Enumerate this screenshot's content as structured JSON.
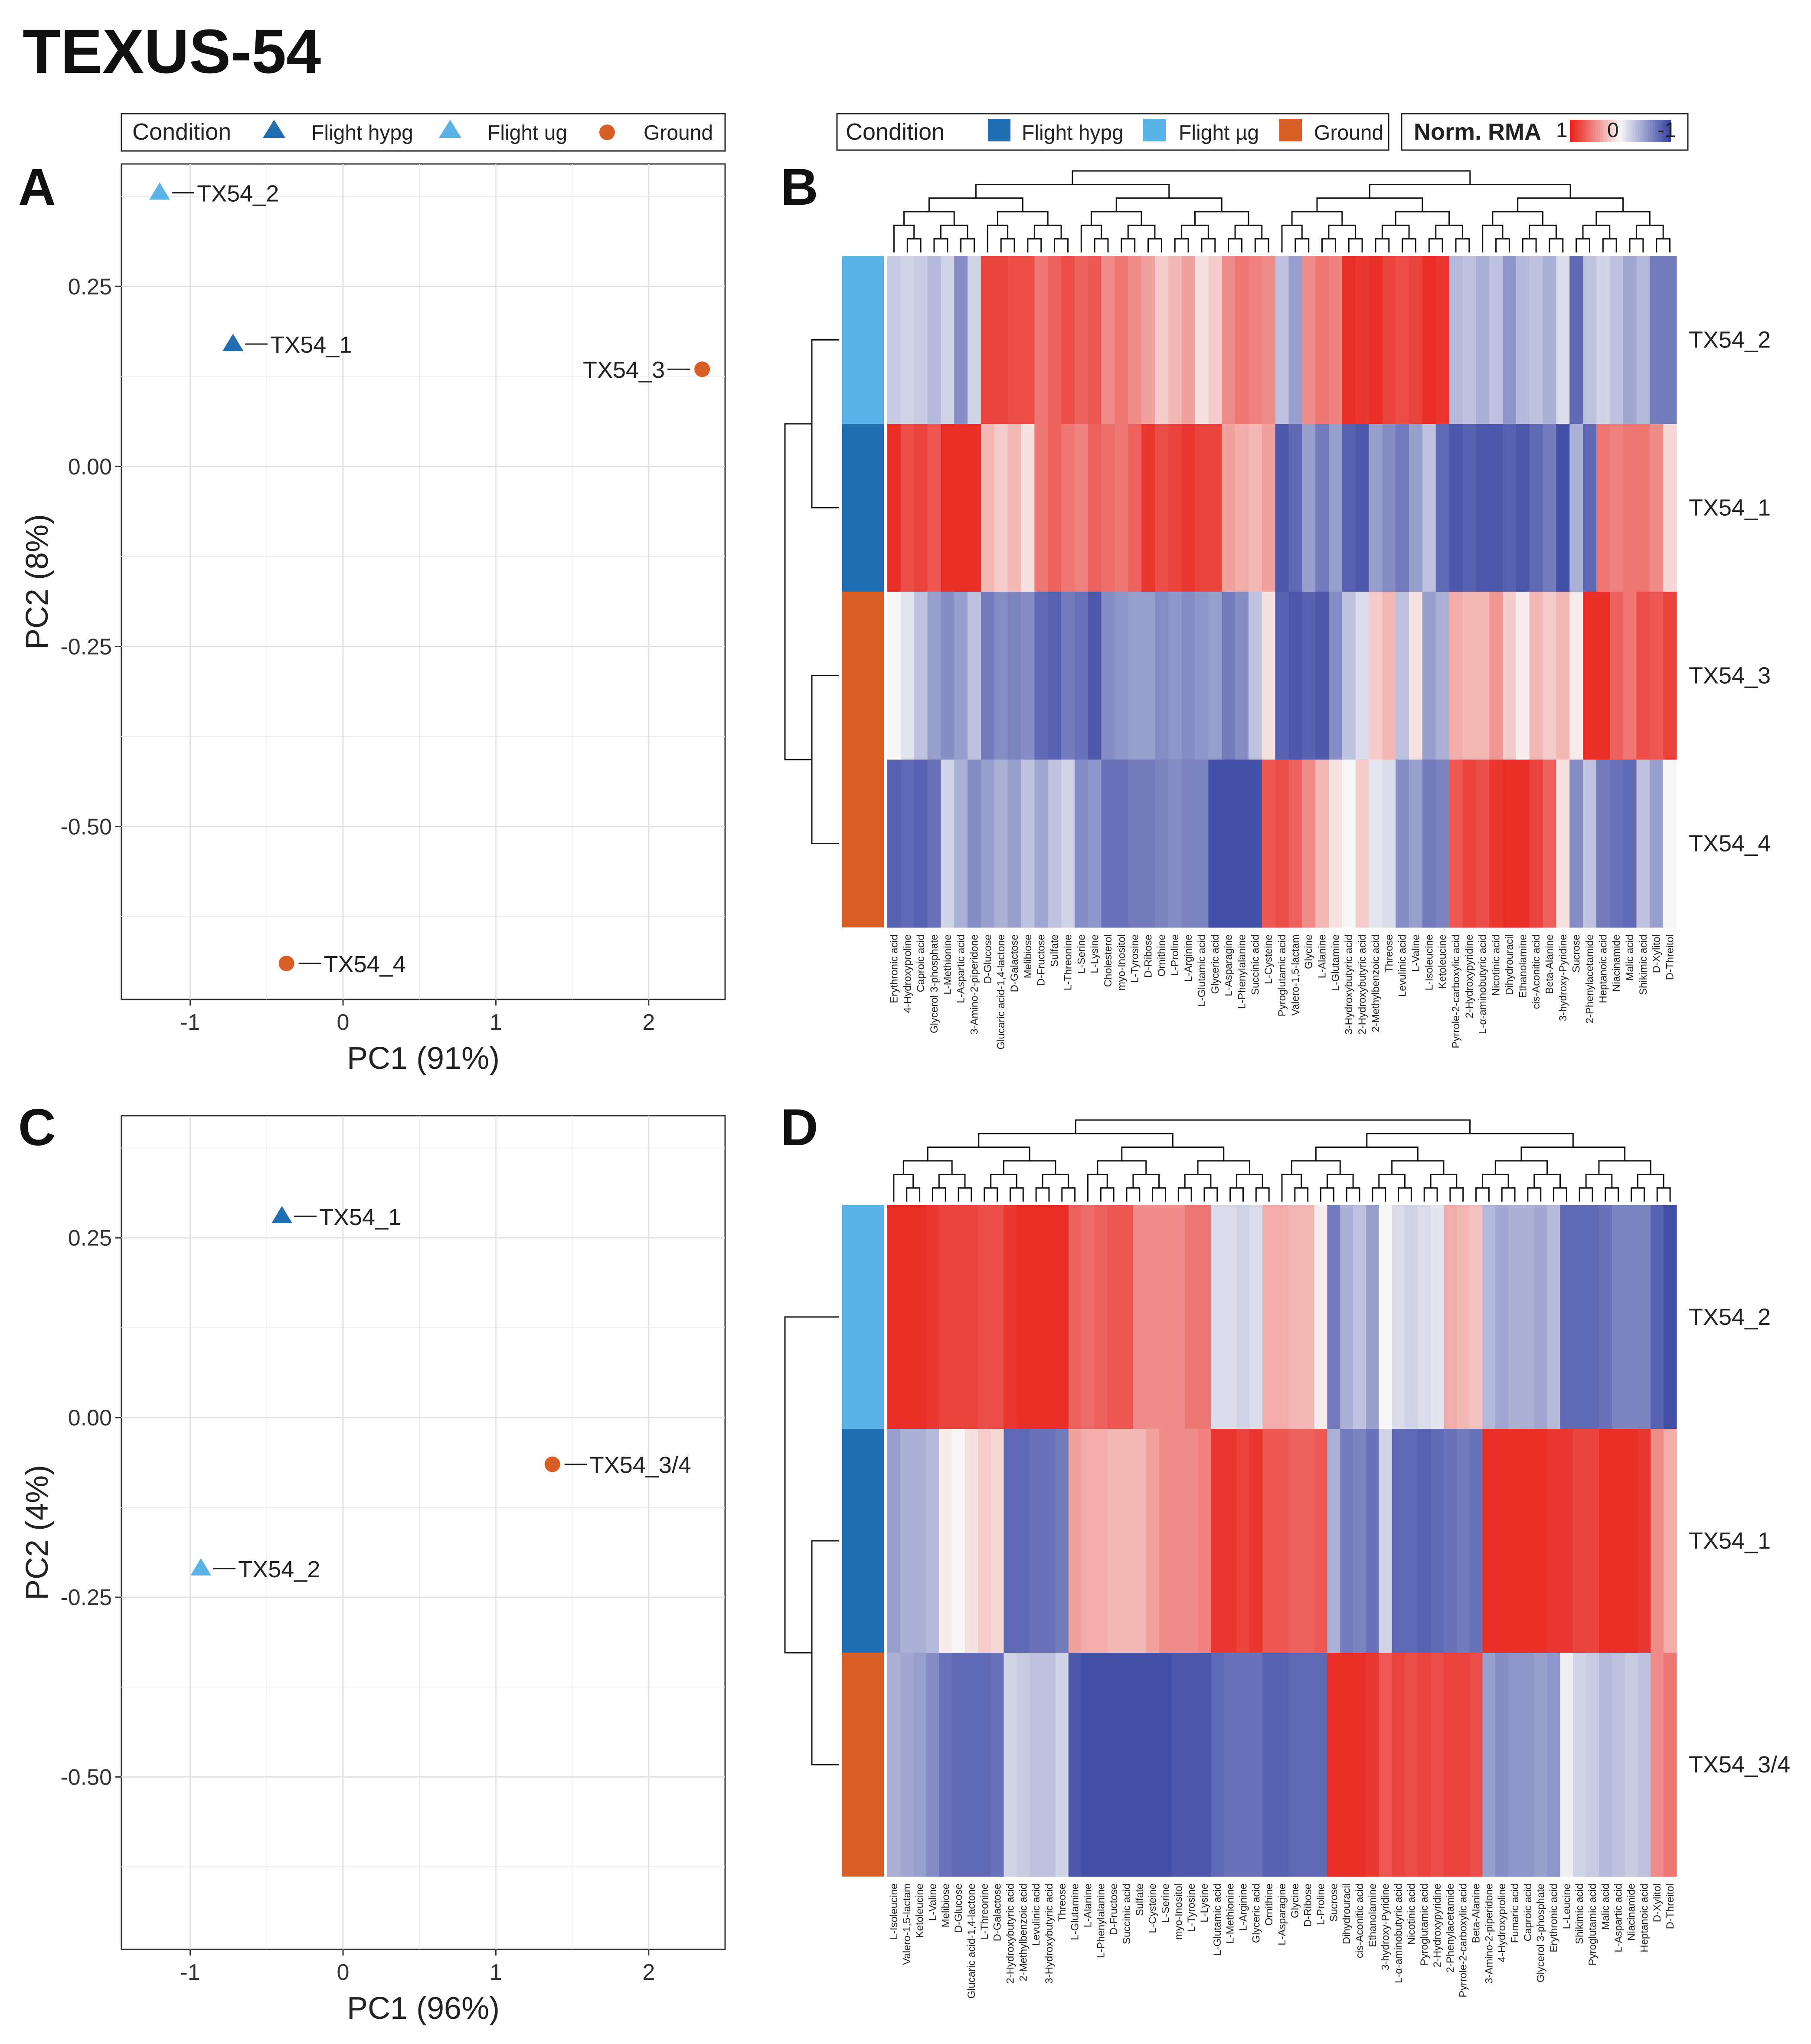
{
  "title": "TEXUS-54",
  "colors": {
    "flight_hypg": "#1f6fb2",
    "flight_ug": "#5ab3e6",
    "ground": "#d95f26",
    "heat_high": "#e8221c",
    "heat_mid": "#f7f7f7",
    "heat_low": "#3a46a3"
  },
  "panelA": {
    "label": "A",
    "legend": {
      "title": "Condition",
      "items": [
        "Flight hypg",
        "Flight ug",
        "Ground"
      ]
    }
  },
  "panelB": {
    "label": "B",
    "legend": {
      "title": "Condition",
      "items": [
        "Flight hypg",
        "Flight µg",
        "Ground"
      ]
    },
    "scale": {
      "title": "Norm. RMA",
      "ticks": [
        "1",
        "0",
        "-1"
      ]
    }
  },
  "panelC": {
    "label": "C"
  },
  "panelD": {
    "label": "D"
  },
  "chart_data": [
    {
      "id": "A",
      "type": "scatter",
      "xlabel": "PC1 (91%)",
      "ylabel": "PC2 (8%)",
      "xlim": [
        -1.45,
        2.5
      ],
      "ylim": [
        -0.74,
        0.42
      ],
      "xticks": [
        "-1",
        "0",
        "1",
        "2"
      ],
      "xtick_values": [
        -1,
        0,
        1,
        2
      ],
      "yticks": [
        "0.25",
        "0.00",
        "-0.25",
        "-0.50"
      ],
      "ytick_values": [
        0.25,
        0.0,
        -0.25,
        -0.5
      ],
      "points": [
        {
          "label": "TX54_2",
          "x": -1.2,
          "y": 0.38,
          "group": "Flight ug",
          "side": "right"
        },
        {
          "label": "TX54_1",
          "x": -0.72,
          "y": 0.17,
          "group": "Flight hypg",
          "side": "right"
        },
        {
          "label": "TX54_3",
          "x": 2.35,
          "y": 0.135,
          "group": "Ground",
          "side": "left"
        },
        {
          "label": "TX54_4",
          "x": -0.37,
          "y": -0.69,
          "group": "Ground",
          "side": "right"
        }
      ]
    },
    {
      "id": "B",
      "type": "heatmap",
      "rows": [
        "TX54_2",
        "TX54_1",
        "TX54_3",
        "TX54_4"
      ],
      "row_groups": [
        "Flight ug",
        "Flight hypg",
        "Ground",
        "Ground"
      ],
      "columns": [
        "Erythronic acid",
        "4-Hydroxyproline",
        "Caproic acid",
        "Glycerol 3-phosphate",
        "L-Methionine",
        "L-Aspartic acid",
        "3-Amino-2-piperidone",
        "D-Glucose",
        "Glucaric acid-1,4-lactone",
        "D-Galactose",
        "Melibiose",
        "D-Fructose",
        "Sulfate",
        "L-Threonine",
        "L-Serine",
        "L-Lysine",
        "Cholesterol",
        "myo-Inositol",
        "L-Tyrosine",
        "D-Ribose",
        "Ornithine",
        "L-Proline",
        "L-Arginine",
        "L-Glutamic acid",
        "Glyceric acid",
        "L-Asparagine",
        "L-Phenylalanine",
        "Succinic acid",
        "L-Cysteine",
        "Pyroglutamic acid",
        "Valero-1,5-lactam",
        "Glycine",
        "L-Alanine",
        "L-Glutamine",
        "3-Hydroxybutyric acid",
        "2-Hydroxybutyric acid",
        "2-Methylbenzoic acid",
        "Threose",
        "Levulinic acid",
        "L-Valine",
        "L-Isoleucine",
        "Ketoleucine",
        "Pyrrole-2-carboxylic acid",
        "2-Hydroxypyridine",
        "L-α-aminobutyric acid",
        "Nicotinic acid",
        "Dihydrouracil",
        "Ethanolamine",
        "cis-Aconitic acid",
        "Beta-Alanine",
        "3-hydroxy-Pyridine",
        "Sucrose",
        "2-Phenylacetamide",
        "Heptanoic acid",
        "Niacinamide",
        "Malic acid",
        "Shikimic acid",
        "D-Xylitol",
        "D-Threitol"
      ],
      "values": [
        [
          -0.25,
          -0.2,
          -0.25,
          -0.35,
          -0.2,
          -0.6,
          -0.2,
          0.85,
          0.85,
          0.8,
          0.8,
          0.6,
          0.7,
          0.8,
          0.7,
          0.75,
          0.5,
          0.6,
          0.5,
          0.4,
          0.2,
          0.3,
          0.4,
          0.1,
          0.2,
          0.5,
          0.6,
          0.55,
          0.5,
          -0.3,
          -0.5,
          0.5,
          0.6,
          0.55,
          0.95,
          0.9,
          0.95,
          0.85,
          0.8,
          0.85,
          0.95,
          0.9,
          -0.35,
          -0.3,
          -0.4,
          -0.3,
          -0.55,
          -0.35,
          -0.3,
          -0.4,
          -0.15,
          -0.8,
          -0.3,
          -0.2,
          -0.3,
          -0.45,
          -0.35,
          -0.7,
          -0.7
        ],
        [
          0.95,
          0.8,
          0.85,
          0.75,
          0.95,
          0.95,
          0.95,
          0.3,
          0.2,
          0.3,
          0.1,
          0.6,
          0.7,
          0.6,
          0.55,
          0.7,
          0.65,
          0.6,
          0.7,
          0.9,
          0.8,
          0.85,
          0.9,
          0.85,
          0.85,
          0.4,
          0.35,
          0.3,
          0.4,
          -0.9,
          -0.8,
          -0.5,
          -0.7,
          -0.5,
          -0.85,
          -0.9,
          -0.5,
          -0.6,
          -0.7,
          -0.5,
          -0.3,
          -0.8,
          -0.9,
          -0.85,
          -0.9,
          -0.9,
          -0.85,
          -0.9,
          -0.8,
          -0.7,
          -0.95,
          -0.4,
          -0.8,
          0.6,
          0.55,
          0.6,
          0.6,
          0.5,
          0.15
        ],
        [
          0.0,
          -0.1,
          -0.3,
          -0.5,
          -0.6,
          -0.5,
          -0.3,
          -0.7,
          -0.6,
          -0.65,
          -0.6,
          -0.8,
          -0.85,
          -0.7,
          -0.75,
          -0.9,
          -0.6,
          -0.55,
          -0.5,
          -0.5,
          -0.6,
          -0.55,
          -0.6,
          -0.55,
          -0.5,
          -0.7,
          -0.6,
          -0.3,
          0.1,
          -0.85,
          -0.9,
          -0.85,
          -0.9,
          -0.6,
          -0.3,
          -0.15,
          0.2,
          0.3,
          -0.3,
          0.1,
          -0.5,
          -0.4,
          0.35,
          0.3,
          0.3,
          0.45,
          0.2,
          0.05,
          0.3,
          0.2,
          0.3,
          0.05,
          0.95,
          0.95,
          0.7,
          0.6,
          0.8,
          0.75,
          0.85
        ],
        [
          -0.85,
          -0.8,
          -0.85,
          -0.75,
          -0.2,
          -0.4,
          -0.6,
          -0.5,
          -0.4,
          -0.5,
          -0.3,
          -0.45,
          -0.3,
          -0.2,
          -0.6,
          -0.55,
          -0.75,
          -0.75,
          -0.7,
          -0.7,
          -0.65,
          -0.6,
          -0.65,
          -0.65,
          -0.95,
          -0.95,
          -0.95,
          -0.95,
          0.75,
          0.8,
          0.7,
          0.5,
          0.3,
          0.1,
          0.0,
          0.2,
          -0.1,
          -0.15,
          -0.6,
          -0.5,
          -0.7,
          -0.65,
          0.75,
          0.85,
          0.8,
          0.9,
          0.95,
          0.95,
          0.85,
          0.7,
          0.1,
          -0.6,
          -0.3,
          -0.7,
          -0.75,
          -0.8,
          -0.3,
          -0.5,
          0.0
        ]
      ]
    },
    {
      "id": "C",
      "type": "scatter",
      "xlabel": "PC1 (96%)",
      "ylabel": "PC2 (4%)",
      "xlim": [
        -1.45,
        2.5
      ],
      "ylim": [
        -0.74,
        0.42
      ],
      "xticks": [
        "-1",
        "0",
        "1",
        "2"
      ],
      "xtick_values": [
        -1,
        0,
        1,
        2
      ],
      "yticks": [
        "0.25",
        "0.00",
        "-0.25",
        "-0.50"
      ],
      "ytick_values": [
        0.25,
        0.0,
        -0.25,
        -0.5
      ],
      "points": [
        {
          "label": "TX54_1",
          "x": -0.4,
          "y": 0.28,
          "group": "Flight hypg",
          "side": "right"
        },
        {
          "label": "TX54_3/4",
          "x": 1.37,
          "y": -0.065,
          "group": "Ground",
          "side": "right"
        },
        {
          "label": "TX54_2",
          "x": -0.93,
          "y": -0.21,
          "group": "Flight ug",
          "side": "right"
        }
      ]
    },
    {
      "id": "D",
      "type": "heatmap",
      "rows": [
        "TX54_2",
        "TX54_1",
        "TX54_3/4"
      ],
      "row_groups": [
        "Flight ug",
        "Flight hypg",
        "Ground"
      ],
      "columns": [
        "L-Isoleucine",
        "Valero-1,5-lactam",
        "Ketoleucine",
        "L-Valine",
        "Melibiose",
        "D-Glucose",
        "Glucaric acid-1,4-lactone",
        "L-Threonine",
        "D-Galactose",
        "2-Hydroxybutyric acid",
        "2-Methylbenzoic acid",
        "Levulinic acid",
        "3-Hydroxybutyric acid",
        "Threose",
        "L-Glutamine",
        "L-Alanine",
        "L-Phenylalanine",
        "D-Fructose",
        "Succinic acid",
        "Sulfate",
        "L-Cysteine",
        "L-Serine",
        "myo-Inositol",
        "L-Tyrosine",
        "L-Lysine",
        "L-Glutamic acid",
        "L-Methionine",
        "L-Arginine",
        "Glyceric acid",
        "Ornithine",
        "L-Asparagine",
        "Glycine",
        "D-Ribose",
        "L-Proline",
        "Sucrose",
        "Dihydrouracil",
        "cis-Aconitic acid",
        "Ethanolamine",
        "3-hydroxy-Pyridine",
        "L-α-aminobutyric acid",
        "Nicotinic acid",
        "Pyroglutamic acid",
        "2-Hydroxypyridine",
        "2-Phenylacetamide",
        "Pyrrole-2-carboxylic acid",
        "Beta-Alanine",
        "3-Amino-2-piperidone",
        "4-Hydroxyproline",
        "Fumaric acid",
        "Caproic acid",
        "Glycerol 3-phosphate",
        "Erythronic acid",
        "L-Leucine",
        "Shikimic acid",
        "Pyroglutamic acid",
        "Malic acid",
        "L-Aspartic acid",
        "Niacinamide",
        "Heptanoic acid",
        "D-Xylitol",
        "D-Threitol"
      ],
      "values": [
        [
          0.95,
          0.95,
          0.95,
          0.9,
          0.85,
          0.85,
          0.85,
          0.8,
          0.8,
          0.9,
          0.95,
          0.95,
          0.95,
          0.95,
          0.7,
          0.65,
          0.7,
          0.75,
          0.75,
          0.5,
          0.5,
          0.5,
          0.5,
          0.6,
          0.6,
          -0.15,
          -0.15,
          -0.2,
          -0.15,
          0.35,
          0.35,
          0.3,
          0.3,
          0.05,
          -0.7,
          -0.4,
          -0.3,
          -0.5,
          0.0,
          -0.15,
          -0.2,
          -0.15,
          -0.1,
          0.35,
          0.3,
          0.25,
          -0.35,
          -0.45,
          -0.4,
          -0.4,
          -0.45,
          -0.35,
          -0.8,
          -0.8,
          -0.8,
          -0.75,
          -0.65,
          -0.65,
          -0.65,
          -0.85,
          -0.95
        ],
        [
          -0.5,
          -0.4,
          -0.4,
          -0.35,
          0.05,
          0.0,
          0.1,
          0.2,
          0.15,
          -0.8,
          -0.8,
          -0.75,
          -0.75,
          -0.7,
          0.4,
          0.35,
          0.35,
          0.3,
          0.3,
          0.3,
          0.4,
          0.5,
          0.5,
          0.5,
          0.55,
          0.9,
          0.9,
          0.85,
          0.9,
          0.75,
          0.75,
          0.7,
          0.7,
          0.75,
          -0.4,
          -0.7,
          -0.65,
          -0.75,
          -0.2,
          -0.8,
          -0.8,
          -0.85,
          -0.8,
          -0.75,
          -0.7,
          -0.75,
          0.95,
          0.95,
          0.95,
          0.95,
          0.95,
          0.9,
          0.9,
          0.85,
          0.85,
          0.95,
          0.95,
          0.95,
          0.9,
          0.5,
          0.35
        ],
        [
          -0.4,
          -0.45,
          -0.5,
          -0.6,
          -0.75,
          -0.8,
          -0.8,
          -0.8,
          -0.75,
          -0.2,
          -0.25,
          -0.3,
          -0.3,
          -0.2,
          -0.9,
          -0.95,
          -0.95,
          -0.95,
          -0.95,
          -0.95,
          -0.95,
          -0.95,
          -0.9,
          -0.9,
          -0.9,
          -0.8,
          -0.75,
          -0.75,
          -0.75,
          -0.85,
          -0.85,
          -0.8,
          -0.8,
          -0.8,
          0.95,
          0.95,
          0.95,
          0.9,
          0.75,
          0.85,
          0.8,
          0.85,
          0.8,
          0.85,
          0.85,
          0.8,
          -0.5,
          -0.6,
          -0.55,
          -0.55,
          -0.5,
          -0.55,
          -0.05,
          -0.2,
          -0.25,
          -0.35,
          -0.3,
          -0.25,
          -0.3,
          0.5,
          0.6
        ]
      ]
    }
  ]
}
